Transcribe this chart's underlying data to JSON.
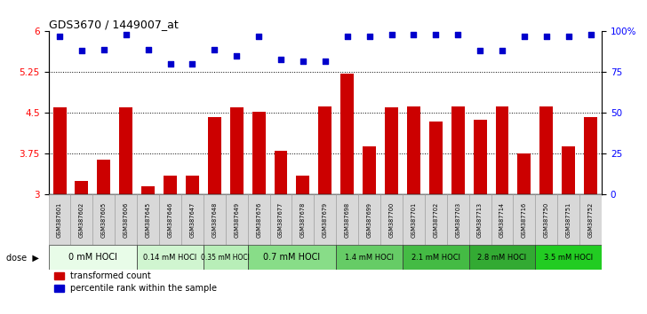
{
  "title": "GDS3670 / 1449007_at",
  "samples": [
    "GSM387601",
    "GSM387602",
    "GSM387605",
    "GSM387606",
    "GSM387645",
    "GSM387646",
    "GSM387647",
    "GSM387648",
    "GSM387649",
    "GSM387676",
    "GSM387677",
    "GSM387678",
    "GSM387679",
    "GSM387698",
    "GSM387699",
    "GSM387700",
    "GSM387701",
    "GSM387702",
    "GSM387703",
    "GSM387713",
    "GSM387714",
    "GSM387716",
    "GSM387750",
    "GSM387751",
    "GSM387752"
  ],
  "bar_values": [
    4.6,
    3.25,
    3.65,
    4.6,
    3.15,
    3.35,
    3.35,
    4.42,
    4.6,
    4.52,
    3.8,
    3.35,
    4.62,
    5.22,
    3.88,
    4.6,
    4.62,
    4.35,
    4.62,
    4.38,
    4.62,
    3.75,
    4.62,
    3.88,
    4.42
  ],
  "percentile_values": [
    97,
    88,
    89,
    98,
    89,
    80,
    80,
    89,
    85,
    97,
    83,
    82,
    82,
    97,
    97,
    98,
    98,
    98,
    98,
    88,
    88,
    97,
    97,
    97,
    98
  ],
  "dose_groups": [
    {
      "label": "0 mM HOCl",
      "start": 0,
      "end": 4,
      "color": "#e8fce8"
    },
    {
      "label": "0.14 mM HOCl",
      "start": 4,
      "end": 7,
      "color": "#d0f5d0"
    },
    {
      "label": "0.35 mM HOCl",
      "start": 7,
      "end": 9,
      "color": "#b8eeb8"
    },
    {
      "label": "0.7 mM HOCl",
      "start": 9,
      "end": 13,
      "color": "#88dd88"
    },
    {
      "label": "1.4 mM HOCl",
      "start": 13,
      "end": 16,
      "color": "#66cc66"
    },
    {
      "label": "2.1 mM HOCl",
      "start": 16,
      "end": 19,
      "color": "#44bb44"
    },
    {
      "label": "2.8 mM HOCl",
      "start": 19,
      "end": 22,
      "color": "#33aa33"
    },
    {
      "label": "3.5 mM HOCl",
      "start": 22,
      "end": 25,
      "color": "#22cc22"
    }
  ],
  "bar_color": "#cc0000",
  "dot_color": "#0000cc",
  "ylim": [
    3.0,
    6.0
  ],
  "yticks": [
    3.0,
    3.75,
    4.5,
    5.25,
    6.0
  ],
  "ytick_labels": [
    "3",
    "3.75",
    "4.5",
    "5.25",
    "6"
  ],
  "right_ytick_labels": [
    "0",
    "25",
    "50",
    "75",
    "100%"
  ],
  "grid_lines": [
    3.75,
    4.5,
    5.25
  ],
  "background_color": "#ffffff",
  "legend_bar_label": "transformed count",
  "legend_dot_label": "percentile rank within the sample"
}
